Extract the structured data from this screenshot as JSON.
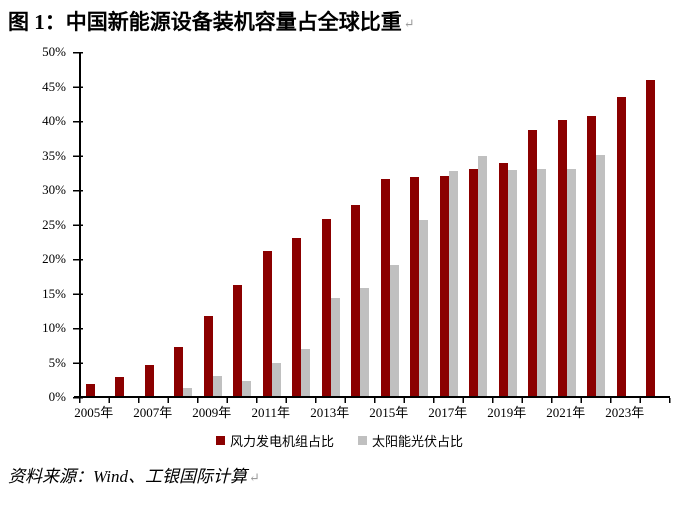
{
  "title": {
    "text": "图 1：中国新能源设备装机容量占全球比重",
    "return_mark": "↵"
  },
  "source": {
    "text": "资料来源：Wind、工银国际计算",
    "return_mark": "↵"
  },
  "colors": {
    "wind": "#8B0000",
    "solar": "#C0C0C0",
    "axis": "#000000"
  },
  "chart_data": {
    "type": "bar",
    "title": "图 1：中国新能源设备装机容量占全球比重",
    "xlabel": "",
    "ylabel": "",
    "ylim": [
      0,
      50
    ],
    "ytick_step": 5,
    "grid": false,
    "legend_position": "bottom",
    "categories": [
      "2005",
      "2006",
      "2007",
      "2008",
      "2009",
      "2010",
      "2011",
      "2012",
      "2013",
      "2014",
      "2015",
      "2016",
      "2017",
      "2018",
      "2019",
      "2020",
      "2021",
      "2022",
      "2023",
      "2024"
    ],
    "x_tick_labels": [
      "2005年",
      "2007年",
      "2009年",
      "2011年",
      "2013年",
      "2015年",
      "2017年",
      "2019年",
      "2021年",
      "2023年"
    ],
    "ytick_labels": [
      "50%",
      "45%",
      "40%",
      "35%",
      "30%",
      "25%",
      "20%",
      "15%",
      "10%",
      "5%",
      "0%"
    ],
    "series": [
      {
        "name": "风力发电机组占比",
        "color": "#8B0000",
        "values": [
          1.9,
          2.9,
          4.6,
          7.2,
          11.8,
          16.3,
          21.2,
          23.1,
          25.8,
          27.9,
          31.6,
          31.9,
          32.1,
          33.0,
          33.9,
          38.7,
          40.1,
          40.7,
          43.5,
          45.9
        ]
      },
      {
        "name": "太阳能光伏占比",
        "color": "#C0C0C0",
        "values": [
          0,
          0,
          0,
          1.3,
          3.0,
          2.3,
          4.9,
          6.9,
          14.4,
          15.8,
          19.1,
          25.6,
          32.8,
          35.0,
          32.9,
          33.1,
          33.0,
          35.1,
          null,
          null
        ]
      }
    ]
  }
}
